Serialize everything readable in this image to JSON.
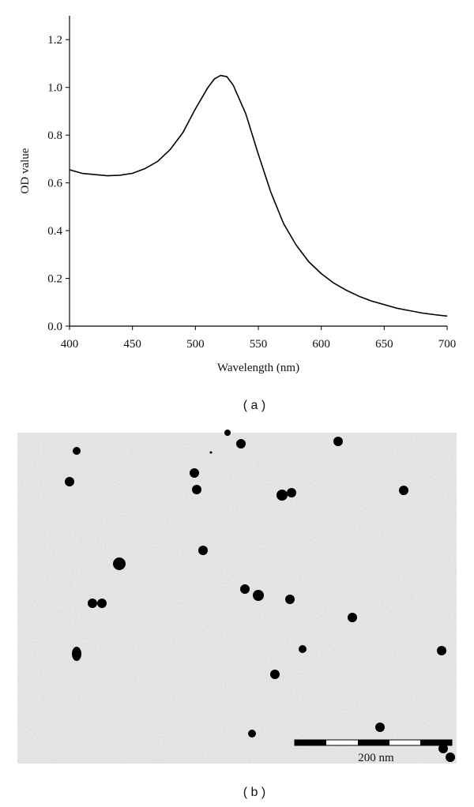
{
  "chart_data": {
    "type": "line",
    "xlabel": "Wavelength (nm)",
    "ylabel": "OD value",
    "x": [
      400,
      410,
      420,
      430,
      440,
      450,
      460,
      470,
      480,
      490,
      500,
      510,
      515,
      520,
      525,
      530,
      540,
      550,
      560,
      570,
      580,
      590,
      600,
      610,
      620,
      630,
      640,
      650,
      660,
      670,
      680,
      690,
      700
    ],
    "values": [
      0.655,
      0.64,
      0.635,
      0.63,
      0.632,
      0.64,
      0.66,
      0.69,
      0.74,
      0.81,
      0.91,
      1.0,
      1.035,
      1.05,
      1.045,
      1.01,
      0.89,
      0.72,
      0.56,
      0.43,
      0.34,
      0.27,
      0.22,
      0.18,
      0.15,
      0.125,
      0.105,
      0.09,
      0.075,
      0.065,
      0.055,
      0.048,
      0.042
    ],
    "color": "#000000",
    "xlim": [
      400,
      700
    ],
    "xticks": [
      400,
      450,
      500,
      550,
      600,
      650,
      700
    ],
    "ylim": [
      0,
      1.3
    ],
    "yticks": [
      {
        "value": 0,
        "label": "0.0"
      },
      0.2,
      0.4,
      0.6,
      0.8,
      {
        "value": 1,
        "label": "1.0"
      },
      1.2
    ],
    "grid": false
  },
  "panels": {
    "a": {
      "caption": "( a )"
    },
    "b": {
      "caption": "( b )",
      "scale_bar": "200 nm"
    }
  }
}
